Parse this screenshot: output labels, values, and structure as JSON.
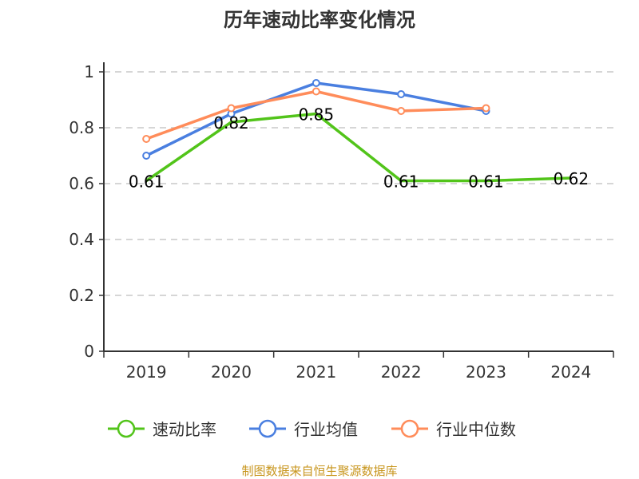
{
  "chart_data": {
    "type": "line",
    "title": "历年速动比率变化情况",
    "categories": [
      "2019",
      "2020",
      "2021",
      "2022",
      "2023",
      "2024"
    ],
    "ylim": [
      0,
      1
    ],
    "yticks": [
      "0",
      "0.2",
      "0.4",
      "0.6",
      "0.8",
      "1"
    ],
    "grid": true,
    "legend_placement": "bottom",
    "series": [
      {
        "name": "速动比率",
        "color": "#52c41a",
        "values": [
          0.61,
          0.82,
          0.85,
          0.61,
          0.61,
          0.62
        ],
        "labels": [
          "0.61",
          "0.82",
          "0.85",
          "0.61",
          "0.61",
          "0.62"
        ]
      },
      {
        "name": "行业均值",
        "color": "#4a7fe0",
        "values": [
          0.7,
          0.85,
          0.96,
          0.92,
          0.86,
          null
        ]
      },
      {
        "name": "行业中位数",
        "color": "#ff8c5a",
        "values": [
          0.76,
          0.87,
          0.93,
          0.86,
          0.87,
          null
        ]
      }
    ]
  },
  "source": "制图数据来自恒生聚源数据库"
}
